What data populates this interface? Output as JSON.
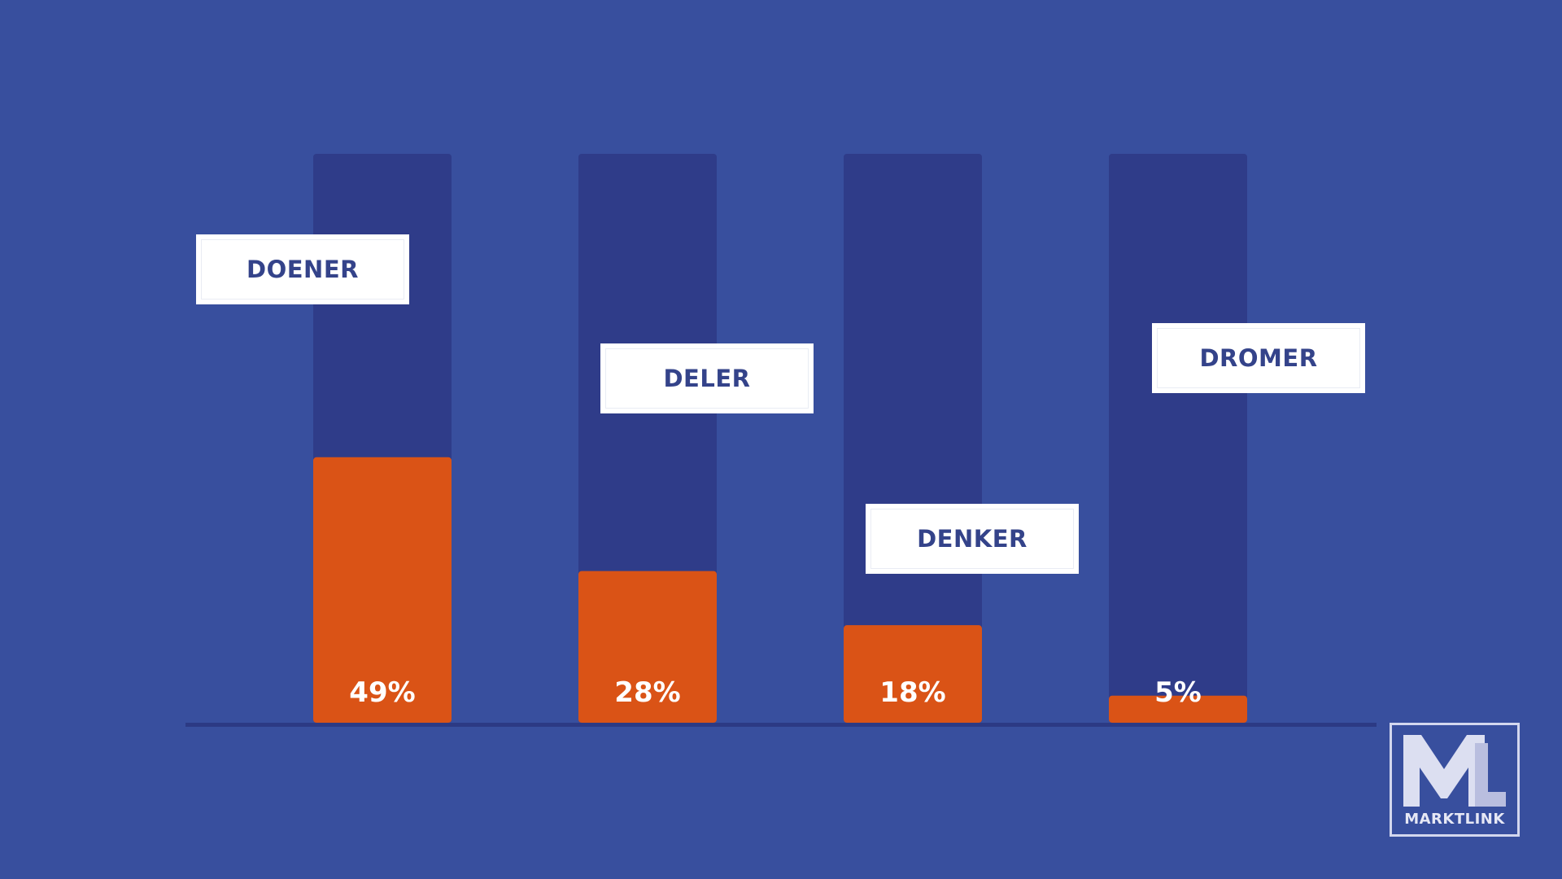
{
  "chart_data": {
    "type": "bar",
    "categories": [
      "DOENER",
      "DELER",
      "DENKER",
      "DROMER"
    ],
    "values": [
      49,
      28,
      18,
      5
    ],
    "value_labels": [
      "49%",
      "28%",
      "18%",
      "5%"
    ],
    "unit": "%",
    "ylim": [
      0,
      105
    ],
    "grid": false,
    "colors": {
      "background": "#384f9e",
      "track": "#2f3c89",
      "bar": "#da5316",
      "label_box": "#ffffff",
      "label_text": "#34438a",
      "baseline": "#2c3a84"
    }
  },
  "logo": {
    "mark": "ML",
    "text": "MARKTLINK"
  }
}
